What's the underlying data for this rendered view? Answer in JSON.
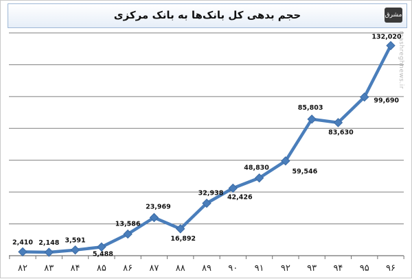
{
  "chart_data": {
    "type": "line",
    "title": "حجم بدهی کل بانک‌ها به بانک مرکزی",
    "categories": [
      "۸۲",
      "۸۳",
      "۸۴",
      "۸۵",
      "۸۶",
      "۸۷",
      "۸۸",
      "۸۹",
      "۹۰",
      "۹۱",
      "۹۲",
      "۹۳",
      "۹۴",
      "۹۵",
      "۹۶"
    ],
    "values": [
      2410,
      2148,
      3591,
      5488,
      13586,
      23969,
      16892,
      32938,
      42426,
      48830,
      59546,
      85803,
      83630,
      99690,
      132020
    ],
    "labels": [
      "2,410",
      "2,148",
      "3,591",
      "5,488",
      "13,586",
      "23,969",
      "16,892",
      "32,938",
      "42,426",
      "48,830",
      "59,546",
      "85,803",
      "83,630",
      "99,690",
      "132,020"
    ],
    "ylim": [
      0,
      140000
    ],
    "grid": true,
    "line_color": "#4a7ebb",
    "marker": "diamond"
  },
  "branding": {
    "logo_text": "مشرق",
    "watermark": "mashreghnews.ir"
  }
}
